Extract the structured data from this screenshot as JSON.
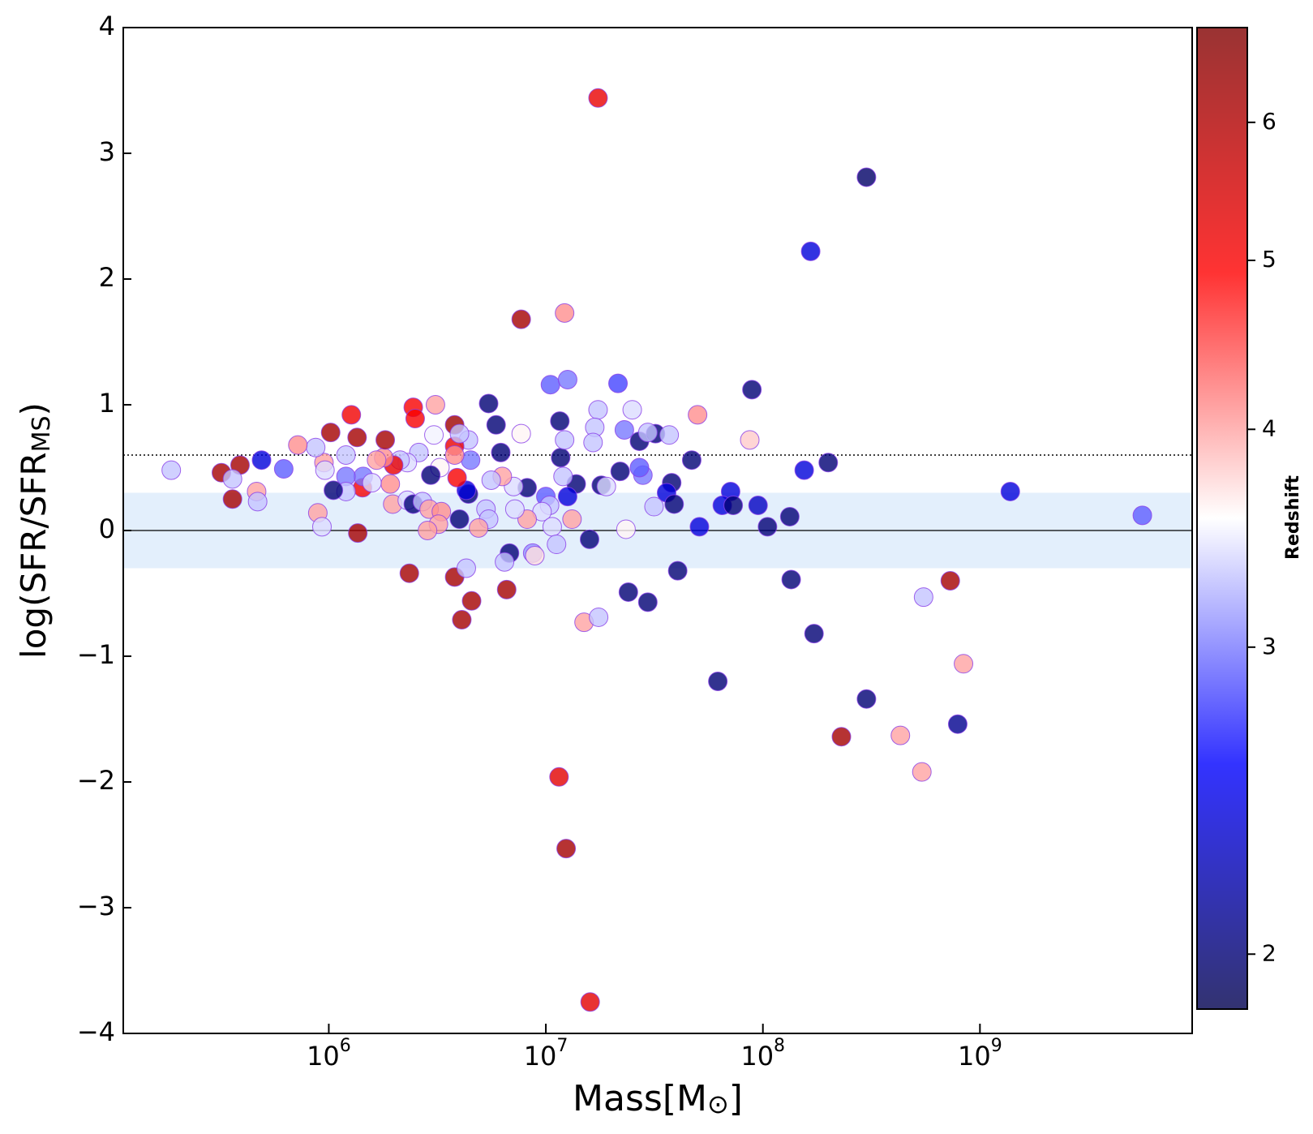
{
  "chart_data": {
    "type": "scatter",
    "xlabel": [
      "Mass[M",
      "⊙",
      "]"
    ],
    "ylabel": [
      "log(SFR/SFR",
      "MS",
      ")"
    ],
    "xscale": "log",
    "xlim": [
      113000,
      9500000000
    ],
    "ylim": [
      -4,
      4
    ],
    "xticks": [
      {
        "value": 1000000,
        "label": "10",
        "exponent": "6"
      },
      {
        "value": 10000000,
        "label": "10",
        "exponent": "7"
      },
      {
        "value": 100000000,
        "label": "10",
        "exponent": "8"
      },
      {
        "value": 1000000000,
        "label": "10",
        "exponent": "9"
      }
    ],
    "yticks": [
      {
        "value": -4,
        "label": "−4"
      },
      {
        "value": -3,
        "label": "−3"
      },
      {
        "value": -2,
        "label": "−2"
      },
      {
        "value": -1,
        "label": "−1"
      },
      0,
      1,
      2,
      3,
      4
    ],
    "hlines": [
      {
        "y": 0,
        "style": "solid"
      },
      {
        "y": 0.6,
        "style": "dotted"
      }
    ],
    "band": {
      "ymin": -0.3,
      "ymax": 0.3,
      "color": "#e3effc"
    },
    "colormap": "seismic",
    "marker_alpha": 0.8,
    "marker_edge_color": "#8a3ee8",
    "colorbar": {
      "label": "Redshift",
      "scale": "log",
      "clim": [
        1.86,
        6.8
      ],
      "ticks": [
        2,
        3,
        4,
        5,
        6
      ]
    },
    "x": [
      17400000,
      300000000,
      166000000,
      7700000,
      12200000,
      89000000,
      10500000,
      12600000,
      21500000,
      5450000,
      5900000,
      11600000,
      6200000,
      11700000,
      17400000,
      16800000,
      16500000,
      25000000,
      23000000,
      27000000,
      32000000,
      29500000,
      37000000,
      50000000,
      87000000,
      47000000,
      200000000,
      155000000,
      1380000000,
      5600000000,
      71000000,
      65000000,
      73000000,
      95000000,
      133000000,
      105000000,
      51000000,
      38000000,
      36000000,
      39000000,
      31500000,
      28000000,
      27000000,
      22000000,
      13800000,
      12600000,
      12000000,
      12200000,
      18000000,
      19000000,
      8200000,
      7100000,
      7700000,
      6300000,
      5600000,
      10000000,
      10400000,
      9600000,
      8200000,
      13200000,
      10700000,
      11200000,
      15900000,
      8700000,
      8900000,
      6800000,
      6450000,
      5300000,
      5450000,
      7200000,
      4900000,
      4000000,
      4400000,
      4300000,
      4500000,
      4400000,
      3800000,
      3800000,
      3800000,
      4000000,
      3900000,
      3250000,
      3100000,
      3050000,
      2950000,
      2450000,
      2500000,
      2600000,
      2300000,
      2130000,
      1990000,
      1920000,
      1790000,
      1660000,
      1820000,
      1350000,
      1270000,
      1020000,
      1430000,
      1440000,
      1580000,
      1200000,
      1200000,
      1200000,
      1050000,
      950000,
      960000,
      870000,
      720000,
      620000,
      490000,
      390000,
      320000,
      360000,
      360000,
      465000,
      470000,
      188000,
      890000,
      930000,
      1360000,
      1970000,
      2300000,
      2450000,
      2700000,
      2900000,
      3300000,
      3200000,
      2850000,
      2350000,
      3800000,
      4300000,
      4550000,
      4100000,
      6600000,
      15000000,
      17500000,
      23400000,
      24000000,
      29500000,
      40500000,
      135000000,
      172000000,
      62000000,
      550000000,
      730000000,
      840000000,
      300000000,
      790000000,
      230000000,
      430000000,
      540000000,
      11500000,
      12400000,
      16000000
    ],
    "y": [
      3.44,
      2.81,
      2.22,
      1.68,
      1.73,
      1.12,
      1.16,
      1.2,
      1.17,
      1.01,
      0.84,
      0.87,
      0.62,
      0.58,
      0.96,
      0.82,
      0.7,
      0.96,
      0.8,
      0.71,
      0.77,
      0.78,
      0.76,
      0.92,
      0.72,
      0.56,
      0.54,
      0.48,
      0.31,
      0.12,
      0.31,
      0.2,
      0.2,
      0.2,
      0.11,
      0.03,
      0.03,
      0.38,
      0.3,
      0.21,
      0.19,
      0.44,
      0.5,
      0.47,
      0.37,
      0.27,
      0.43,
      0.72,
      0.36,
      0.35,
      0.34,
      0.35,
      0.77,
      0.43,
      0.4,
      0.27,
      0.2,
      0.15,
      0.09,
      0.09,
      0.03,
      -0.11,
      -0.07,
      -0.18,
      -0.2,
      -0.18,
      -0.25,
      0.17,
      0.09,
      0.17,
      0.02,
      0.09,
      0.29,
      0.32,
      0.56,
      0.72,
      0.84,
      0.67,
      0.6,
      0.77,
      0.42,
      0.5,
      1.0,
      0.76,
      0.44,
      0.98,
      0.89,
      0.62,
      0.54,
      0.56,
      0.52,
      0.37,
      0.58,
      0.56,
      0.72,
      0.74,
      0.92,
      0.78,
      0.34,
      0.43,
      0.38,
      0.6,
      0.43,
      0.31,
      0.32,
      0.54,
      0.48,
      0.66,
      0.68,
      0.49,
      0.56,
      0.52,
      0.46,
      0.41,
      0.25,
      0.31,
      0.23,
      0.48,
      0.14,
      0.03,
      -0.02,
      0.21,
      0.24,
      0.21,
      0.23,
      0.17,
      0.15,
      0.05,
      0.0,
      -0.34,
      -0.37,
      -0.3,
      -0.56,
      -0.71,
      -0.47,
      -0.73,
      -0.69,
      0.01,
      -0.49,
      -0.57,
      -0.32,
      -0.39,
      -0.82,
      -1.2,
      -0.53,
      -0.4,
      -1.06,
      -1.34,
      -1.54,
      -1.64,
      -1.63,
      -1.92,
      -1.96,
      -2.53,
      -3.75
    ],
    "c": [
      5.2,
      1.95,
      2.4,
      6.2,
      4.1,
      2.0,
      2.9,
      3.0,
      2.8,
      2.0,
      2.0,
      2.0,
      2.0,
      2.0,
      3.3,
      3.3,
      3.3,
      3.4,
      3.0,
      2.0,
      2.0,
      3.3,
      3.3,
      4.1,
      3.8,
      2.0,
      2.0,
      2.4,
      2.4,
      2.9,
      2.4,
      2.4,
      2.0,
      2.3,
      2.0,
      2.0,
      2.4,
      2.0,
      2.4,
      2.0,
      3.3,
      3.0,
      2.9,
      2.0,
      2.0,
      2.4,
      3.3,
      3.3,
      2.0,
      3.4,
      2.0,
      3.4,
      3.6,
      4.0,
      3.3,
      2.9,
      3.3,
      3.4,
      4.0,
      4.0,
      3.4,
      3.3,
      2.0,
      3.1,
      3.7,
      2.0,
      3.3,
      3.3,
      3.3,
      3.4,
      4.0,
      2.0,
      2.0,
      2.4,
      3.0,
      3.3,
      6.3,
      5.2,
      4.1,
      3.3,
      5.0,
      3.6,
      4.0,
      3.5,
      2.0,
      5.0,
      5.0,
      3.3,
      3.4,
      3.3,
      5.2,
      4.1,
      4.1,
      4.0,
      6.2,
      6.2,
      5.1,
      6.2,
      5.1,
      3.0,
      3.4,
      3.3,
      3.0,
      3.3,
      2.0,
      4.0,
      3.4,
      3.3,
      4.1,
      2.9,
      2.4,
      6.2,
      6.2,
      3.3,
      6.2,
      4.0,
      3.3,
      3.3,
      4.0,
      3.4,
      6.2,
      4.0,
      3.4,
      2.0,
      3.3,
      4.0,
      4.1,
      4.0,
      4.0,
      6.2,
      6.2,
      3.3,
      6.2,
      6.2,
      6.2,
      4.0,
      3.3,
      3.6,
      2.0,
      2.0,
      2.0,
      2.0,
      2.0,
      2.0,
      3.3,
      6.2,
      4.0,
      2.0,
      2.1,
      6.2,
      4.0,
      4.0,
      5.3,
      6.2,
      5.3
    ]
  }
}
